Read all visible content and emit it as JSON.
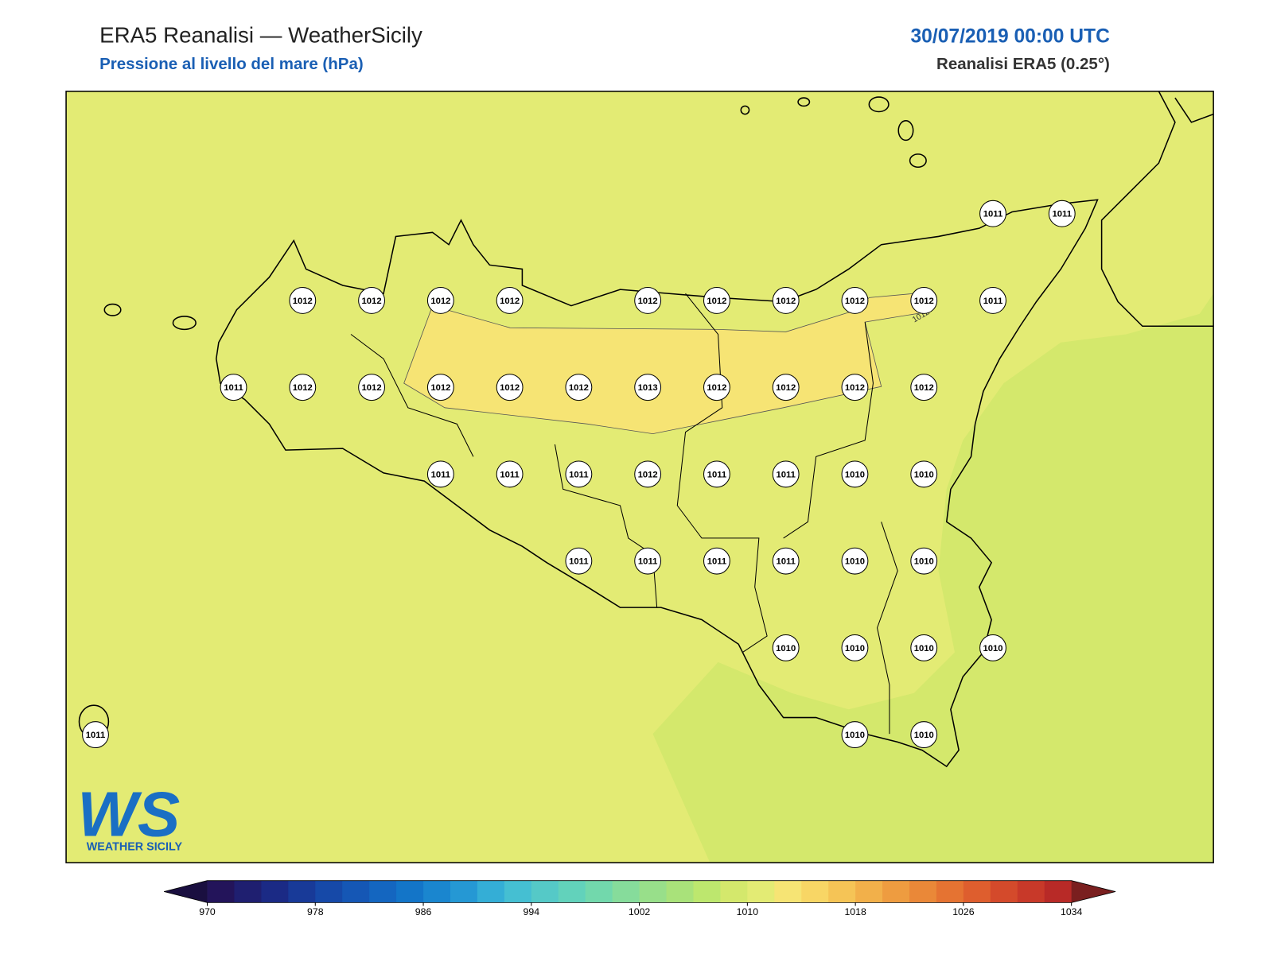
{
  "header": {
    "title": "ERA5 Reanalisi — WeatherSicily",
    "subtitle": "Pressione al livello del mare (hPa)",
    "date": "30/07/2019 00:00 UTC",
    "source": "Reanalisi ERA5 (0.25°)"
  },
  "stations": {
    "grid": [
      [
        null,
        null,
        null,
        null,
        null,
        null,
        null,
        null,
        null,
        null,
        null,
        null,
        null,
        1011,
        1011
      ],
      [
        null,
        null,
        null,
        1012,
        1012,
        1012,
        1012,
        null,
        1012,
        1012,
        1012,
        1012,
        1012,
        1011,
        null
      ],
      [
        null,
        null,
        1011,
        1012,
        1012,
        1012,
        1012,
        1012,
        1013,
        1012,
        1012,
        1012,
        1012,
        null,
        null
      ],
      [
        null,
        null,
        null,
        null,
        null,
        1011,
        1011,
        1011,
        1012,
        1011,
        1011,
        1010,
        1010,
        null,
        null
      ],
      [
        null,
        null,
        null,
        null,
        null,
        null,
        null,
        1011,
        1011,
        1011,
        1011,
        1010,
        1010,
        null,
        null
      ],
      [
        null,
        null,
        null,
        null,
        null,
        null,
        null,
        null,
        null,
        null,
        1010,
        1010,
        1010,
        1010,
        null
      ],
      [
        1011,
        null,
        null,
        null,
        null,
        null,
        null,
        null,
        null,
        null,
        null,
        1010,
        1010,
        null,
        null
      ]
    ]
  },
  "contour_labels": [
    "1012"
  ],
  "logo": {
    "mark": "WS",
    "name": "WEATHER SICILY"
  },
  "colorbar": {
    "ticks": [
      970,
      978,
      986,
      994,
      1002,
      1010,
      1018,
      1026,
      1034
    ],
    "colors": [
      "#23145a",
      "#1f1f70",
      "#1b2a85",
      "#183a98",
      "#1649a8",
      "#1557b5",
      "#1466c0",
      "#1375c8",
      "#1a86cf",
      "#2598d4",
      "#34aed6",
      "#45bfd2",
      "#55c9c7",
      "#62d2bb",
      "#72d8ac",
      "#86dc9b",
      "#98df8a",
      "#a9e27a",
      "#bde76e",
      "#d4e86c",
      "#e3eb74",
      "#f6e474",
      "#f8d665",
      "#f5c456",
      "#f2b04a",
      "#ee9c40",
      "#ea8838",
      "#e57332",
      "#de5e2e",
      "#d44a2b",
      "#c83929",
      "#b82a27"
    ],
    "under_color": "#1a0f40",
    "over_color": "#7a1f1f"
  }
}
